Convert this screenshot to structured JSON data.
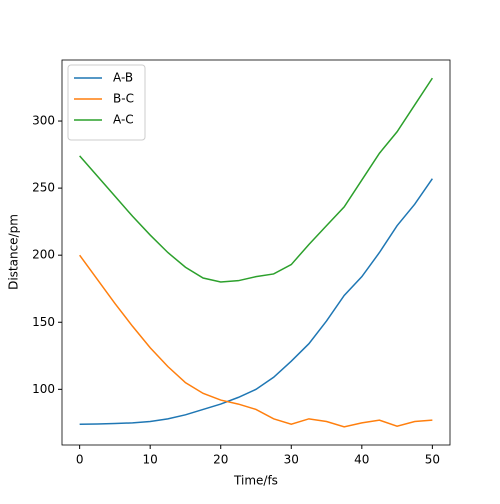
{
  "chart_data": {
    "type": "line",
    "x_label": "Time/fs",
    "y_label": "Distance/pm",
    "x": [
      0,
      2.5,
      5,
      7.5,
      10,
      12.5,
      15,
      17.5,
      20,
      22.5,
      25,
      27.5,
      30,
      32.5,
      35,
      37.5,
      40,
      42.5,
      45,
      47.5,
      50
    ],
    "series": [
      {
        "name": "A-B",
        "color": "#1f77b4",
        "values": [
          74,
          74.2,
          74.5,
          75,
          76,
          78,
          81,
          85,
          89,
          94,
          100,
          109,
          121,
          134,
          151,
          170,
          184,
          202,
          222,
          238,
          257
        ]
      },
      {
        "name": "B-C",
        "color": "#ff7f0e",
        "values": [
          200,
          182,
          164,
          147,
          131,
          117,
          105,
          97,
          92,
          89,
          85,
          78,
          74,
          78,
          76,
          72,
          75,
          77,
          72.5,
          76,
          77
        ]
      },
      {
        "name": "A-C",
        "color": "#2ca02c",
        "values": [
          274,
          259,
          244,
          229,
          215,
          202,
          191,
          183,
          180,
          181,
          184,
          186,
          193,
          208,
          222,
          236,
          256,
          276,
          292,
          312,
          332
        ]
      }
    ],
    "xlim": [
      -2.5,
      52.5
    ],
    "ylim": [
      58.5,
      345.5
    ],
    "xticks": [
      0,
      10,
      20,
      30,
      40,
      50
    ],
    "yticks": [
      100,
      150,
      200,
      250,
      300
    ],
    "legend": "upper left"
  }
}
